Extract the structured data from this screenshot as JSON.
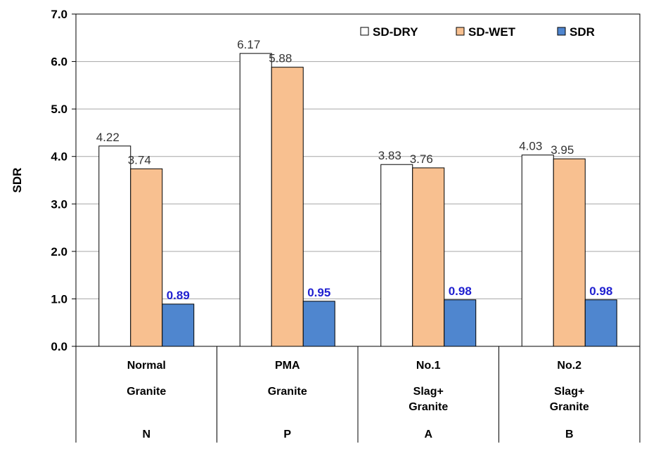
{
  "chart_data": {
    "type": "bar",
    "ylabel": "SDR",
    "ylim": [
      0,
      7
    ],
    "ytick_step": 1,
    "ytick_labels": [
      "0.0",
      "1.0",
      "2.0",
      "3.0",
      "4.0",
      "5.0",
      "6.0",
      "7.0"
    ],
    "grid": true,
    "legend_position": "top-right",
    "categories": [
      {
        "lines": [
          "Normal",
          "Granite"
        ],
        "code": "N"
      },
      {
        "lines": [
          "PMA",
          "Granite"
        ],
        "code": "P"
      },
      {
        "lines": [
          "No.1",
          "Slag+",
          "Granite"
        ],
        "code": "A"
      },
      {
        "lines": [
          "No.2",
          "Slag+",
          "Granite"
        ],
        "code": "B"
      }
    ],
    "series": [
      {
        "name": "SD-DRY",
        "color": "#ffffff",
        "label_color": "#333333",
        "label_bold": false,
        "values": [
          4.22,
          6.17,
          3.83,
          4.03
        ],
        "labels": [
          "4.22",
          "6.17",
          "3.83",
          "4.03"
        ]
      },
      {
        "name": "SD-WET",
        "color": "#f8c090",
        "label_color": "#333333",
        "label_bold": false,
        "values": [
          3.74,
          5.88,
          3.76,
          3.95
        ],
        "labels": [
          "3.74",
          "5.88",
          "3.76",
          "3.95"
        ]
      },
      {
        "name": "SDR",
        "color": "#4f86cf",
        "label_color": "#1f1fd0",
        "label_bold": true,
        "values": [
          0.89,
          0.95,
          0.98,
          0.98
        ],
        "labels": [
          "0.89",
          "0.95",
          "0.98",
          "0.98"
        ]
      }
    ]
  }
}
